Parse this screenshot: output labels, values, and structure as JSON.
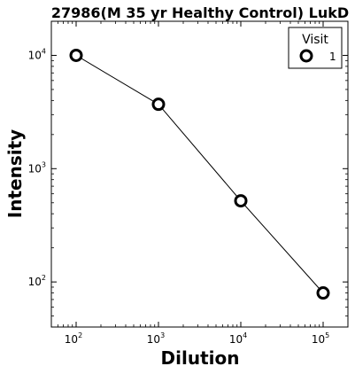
{
  "chart_data": {
    "type": "line",
    "title": "27986(M 35 yr Healthy Control) LukD",
    "xlabel": "Dilution",
    "ylabel": "Intensity",
    "xscale": "log",
    "yscale": "log",
    "xlim": [
      50,
      200000
    ],
    "ylim": [
      40,
      20000
    ],
    "x_ticks": [
      {
        "base": "10",
        "exp": "2",
        "value": 100
      },
      {
        "base": "10",
        "exp": "3",
        "value": 1000
      },
      {
        "base": "10",
        "exp": "4",
        "value": 10000
      },
      {
        "base": "10",
        "exp": "5",
        "value": 100000
      }
    ],
    "y_ticks": [
      {
        "base": "10",
        "exp": "2",
        "value": 100
      },
      {
        "base": "10",
        "exp": "3",
        "value": 1000
      },
      {
        "base": "10",
        "exp": "4",
        "value": 10000
      }
    ],
    "series": [
      {
        "name": "1",
        "x": [
          100,
          1000,
          10000,
          100000
        ],
        "y": [
          10000,
          3700,
          520,
          80
        ]
      }
    ],
    "legend": {
      "title": "Visit",
      "placement": "top-right"
    },
    "grid": false,
    "colors": {
      "line": "#000000",
      "marker_edge": "#000000",
      "marker_face": "#ffffff"
    }
  }
}
